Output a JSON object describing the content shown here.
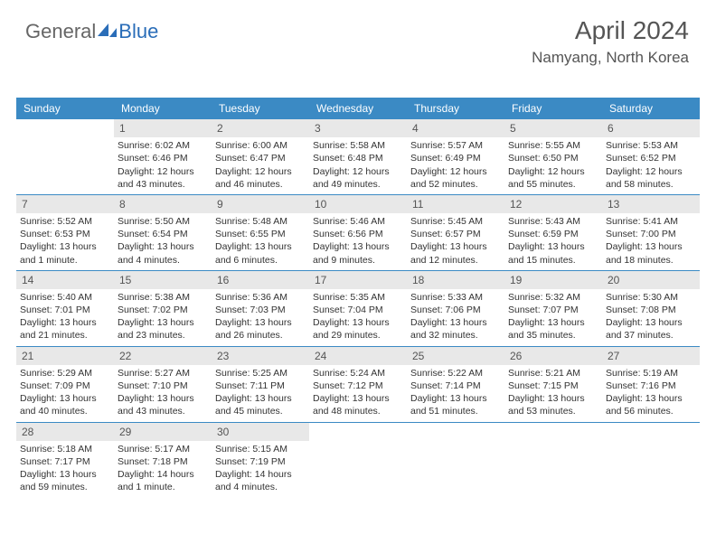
{
  "logo": {
    "part1": "General",
    "part2": "Blue"
  },
  "title": "April 2024",
  "location": "Namyang, North Korea",
  "colors": {
    "header_bg": "#3b8ac4",
    "header_text": "#ffffff",
    "daynum_bg": "#e8e8e8",
    "logo_blue": "#2a6db8",
    "border": "#3b8ac4"
  },
  "day_names": [
    "Sunday",
    "Monday",
    "Tuesday",
    "Wednesday",
    "Thursday",
    "Friday",
    "Saturday"
  ],
  "weeks": [
    [
      {
        "n": "",
        "sr": "",
        "ss": "",
        "dl": ""
      },
      {
        "n": "1",
        "sr": "Sunrise: 6:02 AM",
        "ss": "Sunset: 6:46 PM",
        "dl": "Daylight: 12 hours and 43 minutes."
      },
      {
        "n": "2",
        "sr": "Sunrise: 6:00 AM",
        "ss": "Sunset: 6:47 PM",
        "dl": "Daylight: 12 hours and 46 minutes."
      },
      {
        "n": "3",
        "sr": "Sunrise: 5:58 AM",
        "ss": "Sunset: 6:48 PM",
        "dl": "Daylight: 12 hours and 49 minutes."
      },
      {
        "n": "4",
        "sr": "Sunrise: 5:57 AM",
        "ss": "Sunset: 6:49 PM",
        "dl": "Daylight: 12 hours and 52 minutes."
      },
      {
        "n": "5",
        "sr": "Sunrise: 5:55 AM",
        "ss": "Sunset: 6:50 PM",
        "dl": "Daylight: 12 hours and 55 minutes."
      },
      {
        "n": "6",
        "sr": "Sunrise: 5:53 AM",
        "ss": "Sunset: 6:52 PM",
        "dl": "Daylight: 12 hours and 58 minutes."
      }
    ],
    [
      {
        "n": "7",
        "sr": "Sunrise: 5:52 AM",
        "ss": "Sunset: 6:53 PM",
        "dl": "Daylight: 13 hours and 1 minute."
      },
      {
        "n": "8",
        "sr": "Sunrise: 5:50 AM",
        "ss": "Sunset: 6:54 PM",
        "dl": "Daylight: 13 hours and 4 minutes."
      },
      {
        "n": "9",
        "sr": "Sunrise: 5:48 AM",
        "ss": "Sunset: 6:55 PM",
        "dl": "Daylight: 13 hours and 6 minutes."
      },
      {
        "n": "10",
        "sr": "Sunrise: 5:46 AM",
        "ss": "Sunset: 6:56 PM",
        "dl": "Daylight: 13 hours and 9 minutes."
      },
      {
        "n": "11",
        "sr": "Sunrise: 5:45 AM",
        "ss": "Sunset: 6:57 PM",
        "dl": "Daylight: 13 hours and 12 minutes."
      },
      {
        "n": "12",
        "sr": "Sunrise: 5:43 AM",
        "ss": "Sunset: 6:59 PM",
        "dl": "Daylight: 13 hours and 15 minutes."
      },
      {
        "n": "13",
        "sr": "Sunrise: 5:41 AM",
        "ss": "Sunset: 7:00 PM",
        "dl": "Daylight: 13 hours and 18 minutes."
      }
    ],
    [
      {
        "n": "14",
        "sr": "Sunrise: 5:40 AM",
        "ss": "Sunset: 7:01 PM",
        "dl": "Daylight: 13 hours and 21 minutes."
      },
      {
        "n": "15",
        "sr": "Sunrise: 5:38 AM",
        "ss": "Sunset: 7:02 PM",
        "dl": "Daylight: 13 hours and 23 minutes."
      },
      {
        "n": "16",
        "sr": "Sunrise: 5:36 AM",
        "ss": "Sunset: 7:03 PM",
        "dl": "Daylight: 13 hours and 26 minutes."
      },
      {
        "n": "17",
        "sr": "Sunrise: 5:35 AM",
        "ss": "Sunset: 7:04 PM",
        "dl": "Daylight: 13 hours and 29 minutes."
      },
      {
        "n": "18",
        "sr": "Sunrise: 5:33 AM",
        "ss": "Sunset: 7:06 PM",
        "dl": "Daylight: 13 hours and 32 minutes."
      },
      {
        "n": "19",
        "sr": "Sunrise: 5:32 AM",
        "ss": "Sunset: 7:07 PM",
        "dl": "Daylight: 13 hours and 35 minutes."
      },
      {
        "n": "20",
        "sr": "Sunrise: 5:30 AM",
        "ss": "Sunset: 7:08 PM",
        "dl": "Daylight: 13 hours and 37 minutes."
      }
    ],
    [
      {
        "n": "21",
        "sr": "Sunrise: 5:29 AM",
        "ss": "Sunset: 7:09 PM",
        "dl": "Daylight: 13 hours and 40 minutes."
      },
      {
        "n": "22",
        "sr": "Sunrise: 5:27 AM",
        "ss": "Sunset: 7:10 PM",
        "dl": "Daylight: 13 hours and 43 minutes."
      },
      {
        "n": "23",
        "sr": "Sunrise: 5:25 AM",
        "ss": "Sunset: 7:11 PM",
        "dl": "Daylight: 13 hours and 45 minutes."
      },
      {
        "n": "24",
        "sr": "Sunrise: 5:24 AM",
        "ss": "Sunset: 7:12 PM",
        "dl": "Daylight: 13 hours and 48 minutes."
      },
      {
        "n": "25",
        "sr": "Sunrise: 5:22 AM",
        "ss": "Sunset: 7:14 PM",
        "dl": "Daylight: 13 hours and 51 minutes."
      },
      {
        "n": "26",
        "sr": "Sunrise: 5:21 AM",
        "ss": "Sunset: 7:15 PM",
        "dl": "Daylight: 13 hours and 53 minutes."
      },
      {
        "n": "27",
        "sr": "Sunrise: 5:19 AM",
        "ss": "Sunset: 7:16 PM",
        "dl": "Daylight: 13 hours and 56 minutes."
      }
    ],
    [
      {
        "n": "28",
        "sr": "Sunrise: 5:18 AM",
        "ss": "Sunset: 7:17 PM",
        "dl": "Daylight: 13 hours and 59 minutes."
      },
      {
        "n": "29",
        "sr": "Sunrise: 5:17 AM",
        "ss": "Sunset: 7:18 PM",
        "dl": "Daylight: 14 hours and 1 minute."
      },
      {
        "n": "30",
        "sr": "Sunrise: 5:15 AM",
        "ss": "Sunset: 7:19 PM",
        "dl": "Daylight: 14 hours and 4 minutes."
      },
      {
        "n": "",
        "sr": "",
        "ss": "",
        "dl": ""
      },
      {
        "n": "",
        "sr": "",
        "ss": "",
        "dl": ""
      },
      {
        "n": "",
        "sr": "",
        "ss": "",
        "dl": ""
      },
      {
        "n": "",
        "sr": "",
        "ss": "",
        "dl": ""
      }
    ]
  ]
}
